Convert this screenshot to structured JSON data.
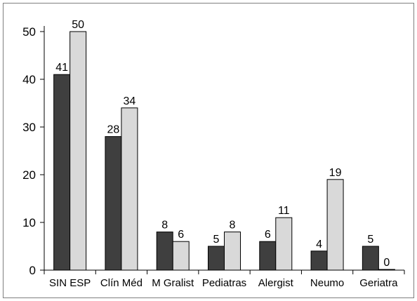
{
  "chart_data": {
    "type": "bar",
    "categories": [
      "SIN ESP",
      "Clín Méd",
      "M Gralist",
      "Pediatras",
      "Alergist",
      "Neumo",
      "Geriatra"
    ],
    "series": [
      {
        "values": [
          41,
          28,
          8,
          5,
          6,
          4,
          5
        ],
        "display_values": [
          "41",
          "28",
          "8",
          "5",
          "6",
          "4",
          "5"
        ],
        "color": "#3f3f3f"
      },
      {
        "values": [
          50,
          34,
          6,
          8,
          11,
          19,
          0
        ],
        "display_values": [
          "50",
          "34",
          "6",
          "8",
          "11",
          "19",
          "0"
        ],
        "color": "#d9d9d9"
      }
    ],
    "ylim": [
      0,
      50
    ],
    "yticks": [
      0,
      10,
      20,
      30,
      40,
      50
    ],
    "ytick_labels": [
      "0",
      "10",
      "20",
      "30",
      "40",
      "50"
    ],
    "grid": false,
    "legend": "none",
    "title": "",
    "xlabel": "",
    "ylabel": ""
  }
}
